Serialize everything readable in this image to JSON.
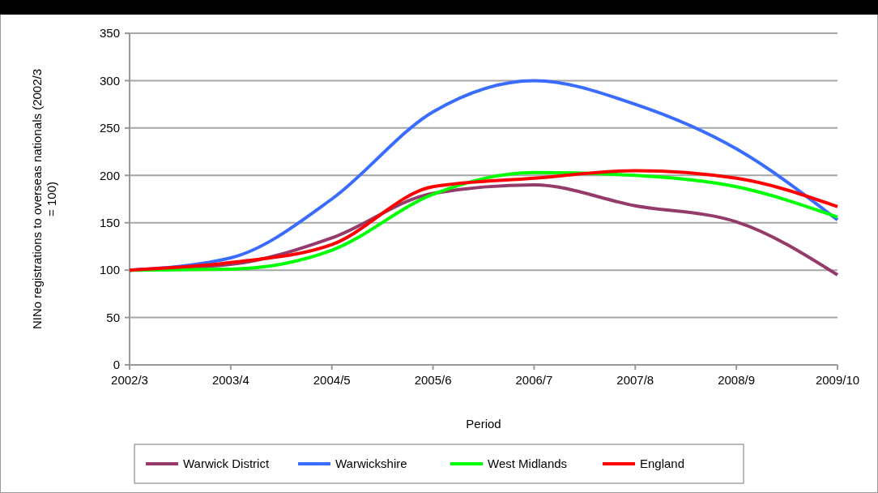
{
  "chart_data": {
    "type": "line",
    "xlabel": "Period",
    "ylabel": "NINo registrations to overseas nationals (2002/3 = 100)",
    "categories": [
      "2002/3",
      "2003/4",
      "2004/5",
      "2005/6",
      "2006/7",
      "2007/8",
      "2008/9",
      "2009/10"
    ],
    "series": [
      {
        "name": "Warwick District",
        "color": "#953b6b",
        "values": [
          100,
          106,
          134,
          181,
          190,
          168,
          151,
          95
        ]
      },
      {
        "name": "Warwickshire",
        "color": "#3a6cff",
        "values": [
          100,
          113,
          175,
          267,
          300,
          275,
          228,
          153
        ]
      },
      {
        "name": "West Midlands",
        "color": "#00ff00",
        "values": [
          100,
          101,
          121,
          180,
          203,
          200,
          188,
          156
        ]
      },
      {
        "name": "England",
        "color": "#ff0000",
        "values": [
          100,
          108,
          127,
          188,
          197,
          205,
          197,
          167
        ]
      }
    ],
    "ylim": [
      0,
      350
    ],
    "yticks": [
      0,
      50,
      100,
      150,
      200,
      250,
      300,
      350
    ],
    "grid": "y",
    "legend": "bottom",
    "marker": "none",
    "line_style": "solid"
  }
}
